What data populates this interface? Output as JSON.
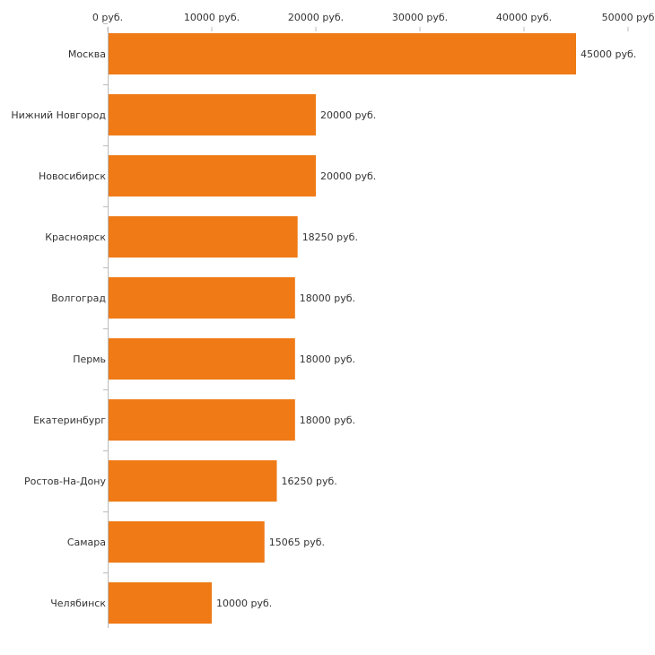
{
  "chart_data": {
    "type": "bar",
    "orientation": "horizontal",
    "title": "",
    "xlabel": "",
    "ylabel": "",
    "unit_suffix": " руб.",
    "xlim": [
      0,
      50000
    ],
    "x_ticks": [
      {
        "value": 0,
        "label": "0 руб."
      },
      {
        "value": 10000,
        "label": "10000 руб."
      },
      {
        "value": 20000,
        "label": "20000 руб."
      },
      {
        "value": 30000,
        "label": "30000 руб."
      },
      {
        "value": 40000,
        "label": "40000 руб."
      },
      {
        "value": 50000,
        "label": "50000 руб"
      }
    ],
    "x_axis_position": "top",
    "grid": false,
    "legend": "none",
    "bar_color": "#ef7a16",
    "categories": [
      "Москва",
      "Нижний Новгород",
      "Новосибирск",
      "Красноярск",
      "Волгоград",
      "Пермь",
      "Екатеринбург",
      "Ростов-На-Дону",
      "Самара",
      "Челябинск"
    ],
    "values": [
      45000,
      20000,
      20000,
      18250,
      18000,
      18000,
      18000,
      16250,
      15065,
      10000
    ],
    "value_labels": [
      "45000 руб.",
      "20000 руб.",
      "20000 руб.",
      "18250 руб.",
      "18000 руб.",
      "18000 руб.",
      "18000 руб.",
      "16250 руб.",
      "15065 руб.",
      "10000 руб."
    ]
  }
}
